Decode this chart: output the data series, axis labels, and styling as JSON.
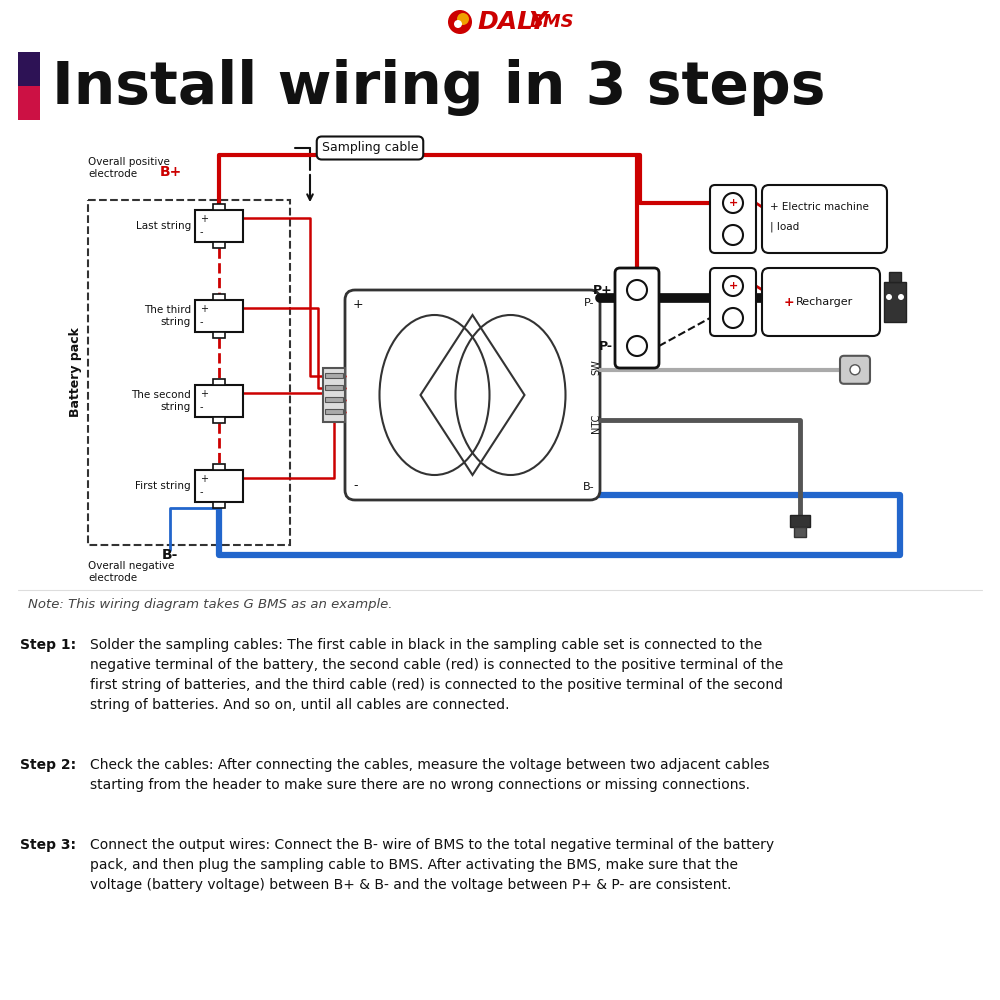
{
  "bg_color": "#ffffff",
  "title": "Install wiring in 3 steps",
  "title_color": "#111111",
  "title_fontsize": 42,
  "red": "#cc0000",
  "blue": "#2266cc",
  "black": "#111111",
  "gray": "#888888",
  "light_gray": "#cccccc",
  "dark_gray": "#333333",
  "daly_red": "#cc0000",
  "note": "Note: This wiring diagram takes G BMS as an example.",
  "step1_label": "Step 1:",
  "step1_body": "Solder the sampling cables: The first cable in black in the sampling cable set is connected to the\nnegative terminal of the battery, the second cable (red) is connected to the positive terminal of the\nfirst string of batteries, and the third cable (red) is connected to the positive terminal of the second\nstring of batteries. And so on, until all cables are connected.",
  "step2_label": "Step 2:",
  "step2_body": "Check the cables: After connecting the cables, measure the voltage between two adjacent cables\nstarting from the header to make sure there are no wrong connections or missing connections.",
  "step3_label": "Step 3:",
  "step3_body": "Connect the output wires: Connect the B- wire of BMS to the total negative terminal of the battery\npack, and then plug the sampling cable to BMS. After activating the BMS, make sure that the\nvoltage (battery voltage) between B+ & B- and the voltage between P+ & P- are consistent."
}
